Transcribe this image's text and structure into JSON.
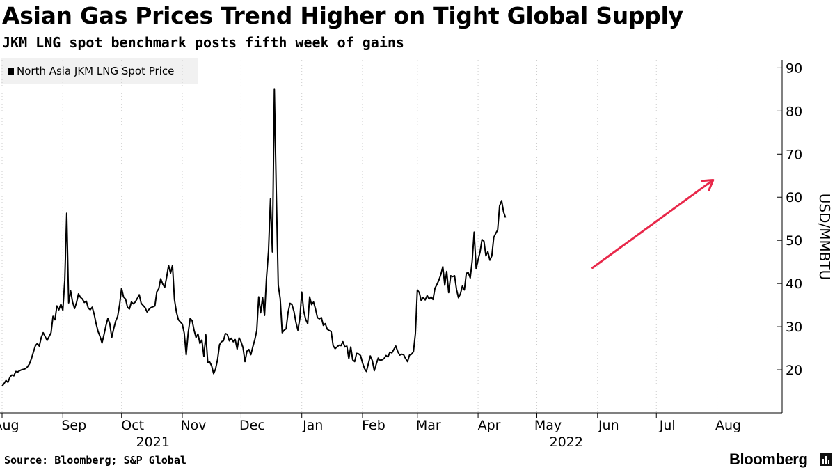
{
  "header": {
    "title": "Asian Gas Prices Trend Higher on Tight Global Supply",
    "subtitle": "JKM LNG spot benchmark posts fifth week of gains"
  },
  "legend": {
    "label": "North Asia JKM LNG Spot Price"
  },
  "footer": {
    "source": "Source: Bloomberg; S&P Global",
    "brand": "Bloomberg"
  },
  "colors": {
    "line": "#000000",
    "arrow": "#e8284a",
    "legend_bg": "#f1f1f1",
    "axis": "#000000"
  },
  "chart_data": {
    "type": "line",
    "title": "Asian Gas Prices Trend Higher on Tight Global Supply",
    "subtitle": "JKM LNG spot benchmark posts fifth week of gains",
    "ylabel": "USD/MMBTU",
    "y_axis_side": "right",
    "ylim": [
      10,
      92
    ],
    "yticks": [
      20,
      30,
      40,
      50,
      60,
      70,
      80,
      90
    ],
    "x_domain_days": [
      0,
      384
    ],
    "x_start_date": "2021-08-01",
    "month_ticks": [
      {
        "label": "Aug",
        "day": 0
      },
      {
        "label": "Sep",
        "day": 31
      },
      {
        "label": "Oct",
        "day": 61
      },
      {
        "label": "Nov",
        "day": 92
      },
      {
        "label": "Dec",
        "day": 122
      },
      {
        "label": "Jan",
        "day": 153
      },
      {
        "label": "Feb",
        "day": 184
      },
      {
        "label": "Mar",
        "day": 212
      },
      {
        "label": "Apr",
        "day": 243
      },
      {
        "label": "May",
        "day": 273
      },
      {
        "label": "Jun",
        "day": 304
      },
      {
        "label": "Jul",
        "day": 334
      },
      {
        "label": "Aug",
        "day": 365
      }
    ],
    "year_labels": [
      {
        "label": "2021",
        "day": 77
      },
      {
        "label": "2022",
        "day": 288
      }
    ],
    "series": [
      {
        "name": "North Asia JKM LNG Spot Price",
        "points": [
          [
            0,
            16.2
          ],
          [
            1,
            16.8
          ],
          [
            2,
            17.5
          ],
          [
            3,
            17.1
          ],
          [
            4,
            18.3
          ],
          [
            5,
            18.8
          ],
          [
            6,
            18.6
          ],
          [
            7,
            19.6
          ],
          [
            8,
            19.5
          ],
          [
            9,
            19.8
          ],
          [
            10,
            20
          ],
          [
            11,
            20.1
          ],
          [
            12,
            20.3
          ],
          [
            13,
            20.7
          ],
          [
            14,
            21.4
          ],
          [
            15,
            22.6
          ],
          [
            16,
            24.1
          ],
          [
            17,
            25.6
          ],
          [
            18,
            26.1
          ],
          [
            19,
            25.5
          ],
          [
            20,
            27.5
          ],
          [
            21,
            28.6
          ],
          [
            22,
            27.7
          ],
          [
            23,
            26.8
          ],
          [
            24,
            27.7
          ],
          [
            25,
            28.6
          ],
          [
            26,
            32.4
          ],
          [
            27,
            31.6
          ],
          [
            28,
            34.8
          ],
          [
            29,
            33.9
          ],
          [
            30,
            35.2
          ],
          [
            31,
            33.8
          ],
          [
            32,
            40.8
          ],
          [
            33,
            56.3
          ],
          [
            34,
            35.5
          ],
          [
            35,
            38.3
          ],
          [
            36,
            35.7
          ],
          [
            37,
            34.2
          ],
          [
            38,
            35.6
          ],
          [
            39,
            37.6
          ],
          [
            40,
            36.8
          ],
          [
            41,
            36.4
          ],
          [
            42,
            35.6
          ],
          [
            43,
            35.9
          ],
          [
            44,
            34.3
          ],
          [
            45,
            33.9
          ],
          [
            46,
            34.5
          ],
          [
            47,
            32.9
          ],
          [
            48,
            30.7
          ],
          [
            49,
            28.9
          ],
          [
            50,
            27.7
          ],
          [
            51,
            26.2
          ],
          [
            52,
            28.1
          ],
          [
            53,
            30.2
          ],
          [
            54,
            31.9
          ],
          [
            55,
            30.7
          ],
          [
            56,
            27.5
          ],
          [
            57,
            29.6
          ],
          [
            58,
            31.3
          ],
          [
            59,
            32.4
          ],
          [
            60,
            35.1
          ],
          [
            61,
            38.9
          ],
          [
            62,
            36.9
          ],
          [
            63,
            36.4
          ],
          [
            64,
            34.5
          ],
          [
            65,
            34.1
          ],
          [
            66,
            35.7
          ],
          [
            67,
            35.3
          ],
          [
            68,
            35.7
          ],
          [
            69,
            36.5
          ],
          [
            70,
            37.4
          ],
          [
            71,
            35.4
          ],
          [
            72,
            34.9
          ],
          [
            73,
            34.4
          ],
          [
            74,
            33.4
          ],
          [
            75,
            34
          ],
          [
            76,
            34.4
          ],
          [
            77,
            34.6
          ],
          [
            78,
            34.8
          ],
          [
            79,
            38.1
          ],
          [
            80,
            38.8
          ],
          [
            81,
            41.1
          ],
          [
            82,
            39.9
          ],
          [
            83,
            39.1
          ],
          [
            84,
            41.5
          ],
          [
            85,
            44.2
          ],
          [
            86,
            42.4
          ],
          [
            87,
            44.2
          ],
          [
            88,
            36.3
          ],
          [
            89,
            33.4
          ],
          [
            90,
            31.6
          ],
          [
            91,
            31.1
          ],
          [
            92,
            30.6
          ],
          [
            93,
            28.5
          ],
          [
            94,
            23.5
          ],
          [
            95,
            28.5
          ],
          [
            96,
            31.9
          ],
          [
            97,
            31.4
          ],
          [
            98,
            29.2
          ],
          [
            99,
            27.5
          ],
          [
            100,
            28.3
          ],
          [
            101,
            26.1
          ],
          [
            102,
            26.9
          ],
          [
            103,
            23.1
          ],
          [
            104,
            28.1
          ],
          [
            105,
            21.7
          ],
          [
            106,
            21.8
          ],
          [
            107,
            20.9
          ],
          [
            108,
            19.1
          ],
          [
            109,
            20.2
          ],
          [
            110,
            22.4
          ],
          [
            111,
            25.8
          ],
          [
            112,
            26.5
          ],
          [
            113,
            26.7
          ],
          [
            114,
            28.4
          ],
          [
            115,
            28.2
          ],
          [
            116,
            26.7
          ],
          [
            117,
            27.3
          ],
          [
            118,
            26.5
          ],
          [
            119,
            27
          ],
          [
            120,
            24.8
          ],
          [
            121,
            27.4
          ],
          [
            122,
            26.5
          ],
          [
            123,
            25.1
          ],
          [
            124,
            21.9
          ],
          [
            125,
            24.3
          ],
          [
            126,
            24.7
          ],
          [
            127,
            23.5
          ],
          [
            128,
            25.3
          ],
          [
            129,
            26.9
          ],
          [
            130,
            29.1
          ],
          [
            131,
            36.9
          ],
          [
            132,
            33.2
          ],
          [
            133,
            36.8
          ],
          [
            134,
            32.6
          ],
          [
            135,
            41.4
          ],
          [
            136,
            47.5
          ],
          [
            137,
            59.6
          ],
          [
            138,
            47.3
          ],
          [
            139,
            85
          ],
          [
            140,
            61
          ],
          [
            141,
            39.6
          ],
          [
            142,
            36.5
          ],
          [
            143,
            28.6
          ],
          [
            144,
            29.2
          ],
          [
            145,
            29.5
          ],
          [
            146,
            33.3
          ],
          [
            147,
            35.4
          ],
          [
            148,
            35.1
          ],
          [
            149,
            33.5
          ],
          [
            150,
            31
          ],
          [
            151,
            29.2
          ],
          [
            152,
            31.9
          ],
          [
            153,
            38
          ],
          [
            154,
            33.6
          ],
          [
            155,
            31.7
          ],
          [
            156,
            30.7
          ],
          [
            157,
            36.9
          ],
          [
            158,
            35.1
          ],
          [
            159,
            35.7
          ],
          [
            160,
            34.1
          ],
          [
            161,
            32.1
          ],
          [
            162,
            31.8
          ],
          [
            163,
            32.1
          ],
          [
            164,
            30.3
          ],
          [
            165,
            30.7
          ],
          [
            166,
            29.4
          ],
          [
            167,
            29.1
          ],
          [
            168,
            28.9
          ],
          [
            169,
            25.6
          ],
          [
            170,
            24.9
          ],
          [
            171,
            25.3
          ],
          [
            172,
            25.7
          ],
          [
            173,
            25.6
          ],
          [
            174,
            26.5
          ],
          [
            175,
            25.3
          ],
          [
            176,
            25.5
          ],
          [
            177,
            22.6
          ],
          [
            178,
            25.3
          ],
          [
            179,
            22.3
          ],
          [
            180,
            21.9
          ],
          [
            181,
            23.8
          ],
          [
            182,
            23.7
          ],
          [
            183,
            23.3
          ],
          [
            184,
            21.6
          ],
          [
            185,
            20.3
          ],
          [
            186,
            19.6
          ],
          [
            187,
            21.4
          ],
          [
            188,
            23.2
          ],
          [
            189,
            22.1
          ],
          [
            190,
            19.8
          ],
          [
            191,
            21.3
          ],
          [
            192,
            22.7
          ],
          [
            193,
            22.2
          ],
          [
            194,
            22.3
          ],
          [
            195,
            22.6
          ],
          [
            196,
            23.3
          ],
          [
            197,
            23
          ],
          [
            198,
            24.1
          ],
          [
            199,
            23.9
          ],
          [
            200,
            24.7
          ],
          [
            201,
            25.5
          ],
          [
            202,
            24.2
          ],
          [
            203,
            23.4
          ],
          [
            204,
            23.6
          ],
          [
            205,
            23.5
          ],
          [
            206,
            22.6
          ],
          [
            207,
            21.9
          ],
          [
            208,
            23.4
          ],
          [
            209,
            23.6
          ],
          [
            210,
            24.2
          ],
          [
            211,
            28.4
          ],
          [
            212,
            38.5
          ],
          [
            213,
            37.9
          ],
          [
            214,
            36
          ],
          [
            215,
            36.8
          ],
          [
            216,
            36.2
          ],
          [
            217,
            37.2
          ],
          [
            218,
            36.4
          ],
          [
            219,
            36.9
          ],
          [
            220,
            36.3
          ],
          [
            221,
            38.9
          ],
          [
            222,
            39.8
          ],
          [
            223,
            40.8
          ],
          [
            224,
            42.1
          ],
          [
            225,
            43.9
          ],
          [
            226,
            39.6
          ],
          [
            227,
            42.8
          ],
          [
            228,
            37.9
          ],
          [
            229,
            41.8
          ],
          [
            230,
            41.6
          ],
          [
            231,
            41.8
          ],
          [
            232,
            38.6
          ],
          [
            233,
            36.7
          ],
          [
            234,
            37.6
          ],
          [
            235,
            39.4
          ],
          [
            236,
            38.5
          ],
          [
            237,
            42.4
          ],
          [
            238,
            42.5
          ],
          [
            239,
            41.3
          ],
          [
            240,
            45.2
          ],
          [
            241,
            51.9
          ],
          [
            242,
            43.4
          ],
          [
            243,
            45.5
          ],
          [
            244,
            47.3
          ],
          [
            245,
            50.2
          ],
          [
            246,
            49.8
          ],
          [
            247,
            46.4
          ],
          [
            248,
            47.4
          ],
          [
            249,
            45.4
          ],
          [
            250,
            46.4
          ],
          [
            251,
            50.7
          ],
          [
            252,
            51.6
          ],
          [
            253,
            52.4
          ],
          [
            254,
            58
          ],
          [
            255,
            59.2
          ],
          [
            256,
            56.6
          ],
          [
            257,
            55.3
          ]
        ]
      }
    ],
    "annotations": [
      {
        "type": "arrow",
        "description": "upward trend arrow",
        "from": {
          "day": 301,
          "value": 43.5
        },
        "to": {
          "day": 363,
          "value": 64
        }
      }
    ]
  }
}
